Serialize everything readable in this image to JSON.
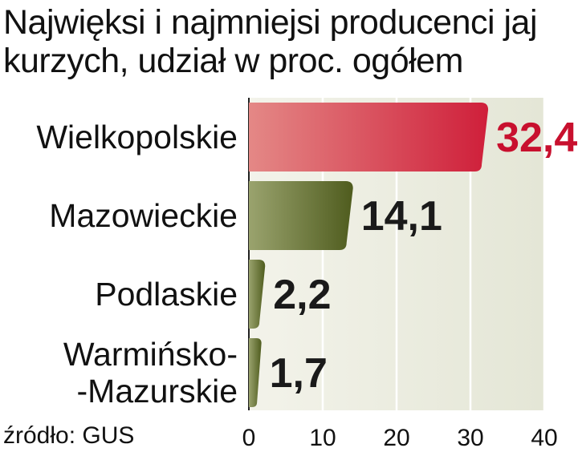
{
  "chart_data": {
    "type": "bar",
    "orientation": "horizontal",
    "title": "Najwięksi i najmniejsi producenci jaj kurzych, udział w proc. ogółem",
    "source": "źródło: GUS",
    "categories": [
      [
        "Wielkopolskie"
      ],
      [
        "Mazowieckie"
      ],
      [
        "Podlaskie"
      ],
      [
        "Warmińsko-",
        "-Mazurskie"
      ]
    ],
    "values": [
      32.4,
      14.1,
      2.2,
      1.7
    ],
    "value_labels": [
      "32,4",
      "14,1",
      "2,2",
      "1,7"
    ],
    "xlim": [
      0,
      40
    ],
    "x_ticks": [
      0,
      10,
      20,
      30,
      40
    ],
    "grid": true,
    "colors": {
      "highlight_bar": "#d42a3c",
      "highlight_label": "#c8102e",
      "bar": "#5d6b2a",
      "label": "#1a1a1a",
      "plot_background": "#e9eadc"
    }
  }
}
